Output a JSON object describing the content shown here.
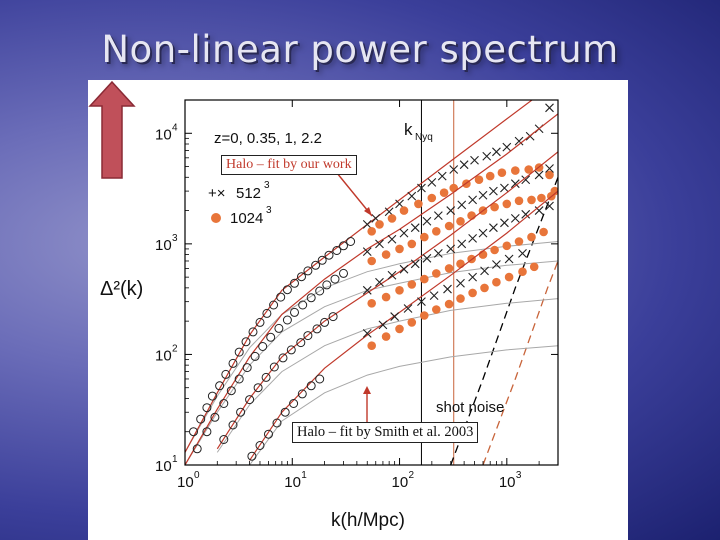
{
  "slide": {
    "title": "Non-linear power spectrum"
  },
  "chart_data": {
    "type": "scatter",
    "xlabel": "k(h/Mpc)",
    "ylabel": "Δ²(k)",
    "x_scale": "log",
    "y_scale": "log",
    "xlim": [
      1,
      3000
    ],
    "ylim": [
      10,
      20000
    ],
    "x_ticks": [
      {
        "value": 1,
        "label": "10",
        "exp": "0"
      },
      {
        "value": 10,
        "label": "10",
        "exp": "1"
      },
      {
        "value": 100,
        "label": "10",
        "exp": "2"
      },
      {
        "value": 1000,
        "label": "10",
        "exp": "3"
      }
    ],
    "y_ticks": [
      {
        "value": 10,
        "label": "10",
        "exp": "1"
      },
      {
        "value": 100,
        "label": "10",
        "exp": "2"
      },
      {
        "value": 1000,
        "label": "10",
        "exp": "3"
      },
      {
        "value": 10000,
        "label": "10",
        "exp": "4"
      }
    ],
    "redshift_label": "z=0, 0.35, 1, 2.2",
    "legend": [
      {
        "label": "512",
        "exp": "3",
        "marker": "+×"
      },
      {
        "label": "1024",
        "exp": "3",
        "marker": "●"
      }
    ],
    "annotations": {
      "k_nyq": "k",
      "k_nyq_sub": "Nyq",
      "shot_noise": "shot noise",
      "k_nyq_512": 160,
      "k_nyq_1024": 320
    },
    "callouts": {
      "top": "Halo – fit by our work",
      "bottom": "Halo – fit by Smith et al. 2003"
    },
    "series": [
      {
        "fit": [
          [
            1,
            13
          ],
          [
            2,
            45
          ],
          [
            4,
            150
          ],
          [
            8,
            380
          ],
          [
            20,
            760
          ],
          [
            50,
            1500
          ],
          [
            100,
            2500
          ],
          [
            300,
            5600
          ],
          [
            1000,
            13500
          ],
          [
            3000,
            30000
          ]
        ],
        "linear": [
          [
            1,
            13
          ],
          [
            2,
            42
          ],
          [
            4,
            115
          ],
          [
            8,
            230
          ],
          [
            20,
            400
          ],
          [
            50,
            560
          ],
          [
            100,
            660
          ],
          [
            300,
            820
          ],
          [
            1000,
            950
          ],
          [
            3000,
            1050
          ]
        ],
        "circles": [
          [
            1.2,
            20
          ],
          [
            1.4,
            26
          ],
          [
            1.6,
            33
          ],
          [
            1.8,
            42
          ],
          [
            2.1,
            52
          ],
          [
            2.4,
            66
          ],
          [
            2.8,
            83
          ],
          [
            3.2,
            105
          ],
          [
            3.7,
            130
          ],
          [
            4.3,
            160
          ],
          [
            5,
            195
          ],
          [
            5.8,
            235
          ],
          [
            6.7,
            280
          ],
          [
            7.8,
            330
          ],
          [
            9,
            385
          ],
          [
            10.5,
            440
          ],
          [
            12.2,
            505
          ],
          [
            14,
            570
          ],
          [
            16.5,
            640
          ],
          [
            19,
            710
          ],
          [
            22,
            790
          ],
          [
            26,
            870
          ],
          [
            30,
            960
          ],
          [
            35,
            1050
          ]
        ],
        "crosses": [
          [
            50,
            1500
          ],
          [
            60,
            1700
          ],
          [
            80,
            1950
          ],
          [
            100,
            2300
          ],
          [
            130,
            2700
          ],
          [
            160,
            3200
          ],
          [
            200,
            3600
          ],
          [
            250,
            4100
          ],
          [
            320,
            4700
          ],
          [
            400,
            5200
          ],
          [
            500,
            5700
          ],
          [
            650,
            6200
          ],
          [
            800,
            6800
          ],
          [
            1000,
            7500
          ],
          [
            1300,
            8500
          ],
          [
            1650,
            9400
          ],
          [
            2000,
            11000
          ],
          [
            2500,
            17000
          ]
        ],
        "dots": [
          [
            55,
            1300
          ],
          [
            65,
            1500
          ],
          [
            85,
            1700
          ],
          [
            110,
            2000
          ],
          [
            150,
            2300
          ],
          [
            200,
            2600
          ],
          [
            260,
            2900
          ],
          [
            320,
            3200
          ],
          [
            420,
            3500
          ],
          [
            550,
            3800
          ],
          [
            700,
            4100
          ],
          [
            900,
            4400
          ],
          [
            1200,
            4600
          ],
          [
            1600,
            4700
          ],
          [
            2000,
            4900
          ],
          [
            2500,
            4200
          ],
          [
            2800,
            3000
          ]
        ]
      },
      {
        "fit": [
          [
            1,
            10
          ],
          [
            2,
            32
          ],
          [
            4,
            95
          ],
          [
            8,
            230
          ],
          [
            20,
            480
          ],
          [
            50,
            900
          ],
          [
            100,
            1350
          ],
          [
            300,
            2800
          ],
          [
            1000,
            6500
          ],
          [
            3000,
            15000
          ]
        ],
        "linear": [
          [
            1,
            10
          ],
          [
            2,
            30
          ],
          [
            4,
            80
          ],
          [
            8,
            160
          ],
          [
            20,
            270
          ],
          [
            50,
            380
          ],
          [
            100,
            440
          ],
          [
            300,
            550
          ],
          [
            1000,
            640
          ],
          [
            3000,
            700
          ]
        ],
        "circles": [
          [
            1.3,
            14
          ],
          [
            1.6,
            20
          ],
          [
            1.9,
            27
          ],
          [
            2.3,
            36
          ],
          [
            2.7,
            47
          ],
          [
            3.2,
            60
          ],
          [
            3.8,
            76
          ],
          [
            4.5,
            96
          ],
          [
            5.3,
            118
          ],
          [
            6.3,
            143
          ],
          [
            7.5,
            172
          ],
          [
            9,
            205
          ],
          [
            10.5,
            240
          ],
          [
            12.5,
            280
          ],
          [
            15,
            325
          ],
          [
            18,
            375
          ],
          [
            21,
            425
          ],
          [
            25,
            480
          ],
          [
            30,
            540
          ]
        ],
        "crosses": [
          [
            50,
            850
          ],
          [
            65,
            1000
          ],
          [
            85,
            1100
          ],
          [
            110,
            1250
          ],
          [
            140,
            1400
          ],
          [
            180,
            1600
          ],
          [
            230,
            1800
          ],
          [
            300,
            2000
          ],
          [
            380,
            2250
          ],
          [
            480,
            2500
          ],
          [
            600,
            2750
          ],
          [
            750,
            3000
          ],
          [
            950,
            3200
          ],
          [
            1200,
            3500
          ],
          [
            1500,
            3800
          ],
          [
            2000,
            4200
          ],
          [
            2500,
            4800
          ]
        ],
        "dots": [
          [
            55,
            700
          ],
          [
            75,
            800
          ],
          [
            100,
            900
          ],
          [
            130,
            1000
          ],
          [
            170,
            1150
          ],
          [
            220,
            1300
          ],
          [
            290,
            1450
          ],
          [
            370,
            1600
          ],
          [
            470,
            1800
          ],
          [
            600,
            2000
          ],
          [
            770,
            2150
          ],
          [
            1000,
            2300
          ],
          [
            1300,
            2450
          ],
          [
            1700,
            2500
          ],
          [
            2100,
            2600
          ],
          [
            2600,
            2700
          ]
        ]
      },
      {
        "fit": [
          [
            2,
            14
          ],
          [
            4,
            40
          ],
          [
            8,
            95
          ],
          [
            20,
            200
          ],
          [
            50,
            360
          ],
          [
            100,
            560
          ],
          [
            300,
            1200
          ],
          [
            1000,
            2900
          ],
          [
            3000,
            6800
          ]
        ],
        "linear": [
          [
            2,
            13
          ],
          [
            4,
            35
          ],
          [
            8,
            70
          ],
          [
            20,
            120
          ],
          [
            50,
            170
          ],
          [
            100,
            200
          ],
          [
            300,
            250
          ],
          [
            1000,
            290
          ],
          [
            3000,
            320
          ]
        ],
        "circles": [
          [
            2.3,
            17
          ],
          [
            2.8,
            23
          ],
          [
            3.3,
            30
          ],
          [
            4,
            39
          ],
          [
            4.8,
            50
          ],
          [
            5.7,
            62
          ],
          [
            6.8,
            77
          ],
          [
            8.2,
            93
          ],
          [
            9.8,
            110
          ],
          [
            12,
            128
          ],
          [
            14,
            148
          ],
          [
            17,
            170
          ],
          [
            20,
            195
          ],
          [
            24,
            220
          ]
        ],
        "crosses": [
          [
            50,
            380
          ],
          [
            65,
            450
          ],
          [
            85,
            520
          ],
          [
            110,
            590
          ],
          [
            140,
            660
          ],
          [
            180,
            740
          ],
          [
            230,
            820
          ],
          [
            300,
            900
          ],
          [
            380,
            1000
          ],
          [
            480,
            1120
          ],
          [
            600,
            1250
          ],
          [
            750,
            1400
          ],
          [
            950,
            1550
          ],
          [
            1200,
            1700
          ],
          [
            1500,
            1850
          ],
          [
            2000,
            2000
          ],
          [
            2500,
            2200
          ]
        ],
        "dots": [
          [
            55,
            290
          ],
          [
            75,
            330
          ],
          [
            100,
            380
          ],
          [
            130,
            430
          ],
          [
            170,
            480
          ],
          [
            220,
            540
          ],
          [
            290,
            600
          ],
          [
            370,
            660
          ],
          [
            470,
            730
          ],
          [
            600,
            800
          ],
          [
            770,
            880
          ],
          [
            1000,
            960
          ],
          [
            1300,
            1050
          ],
          [
            1700,
            1150
          ],
          [
            2200,
            1280
          ]
        ]
      },
      {
        "fit": [
          [
            4,
            11
          ],
          [
            8,
            30
          ],
          [
            20,
            75
          ],
          [
            50,
            150
          ],
          [
            100,
            240
          ],
          [
            300,
            520
          ],
          [
            1000,
            1250
          ],
          [
            3000,
            3000
          ]
        ],
        "linear": [
          [
            4,
            10
          ],
          [
            8,
            25
          ],
          [
            20,
            45
          ],
          [
            50,
            65
          ],
          [
            100,
            78
          ],
          [
            300,
            95
          ],
          [
            1000,
            110
          ],
          [
            3000,
            120
          ]
        ],
        "circles": [
          [
            4.2,
            12
          ],
          [
            5,
            15
          ],
          [
            6,
            19
          ],
          [
            7.2,
            24
          ],
          [
            8.6,
            30
          ],
          [
            10.3,
            36
          ],
          [
            12.4,
            44
          ],
          [
            15,
            52
          ],
          [
            18,
            60
          ]
        ],
        "crosses": [
          [
            50,
            155
          ],
          [
            70,
            185
          ],
          [
            90,
            220
          ],
          [
            120,
            260
          ],
          [
            160,
            300
          ],
          [
            210,
            340
          ],
          [
            280,
            390
          ],
          [
            370,
            440
          ],
          [
            480,
            500
          ],
          [
            620,
            570
          ],
          [
            800,
            650
          ],
          [
            1050,
            730
          ],
          [
            1400,
            820
          ]
        ],
        "dots": [
          [
            55,
            120
          ],
          [
            75,
            145
          ],
          [
            100,
            170
          ],
          [
            130,
            195
          ],
          [
            170,
            225
          ],
          [
            220,
            255
          ],
          [
            290,
            285
          ],
          [
            370,
            320
          ],
          [
            480,
            360
          ],
          [
            620,
            400
          ],
          [
            800,
            450
          ],
          [
            1050,
            500
          ],
          [
            1400,
            560
          ],
          [
            1800,
            620
          ]
        ]
      }
    ],
    "shot_noise_512": [
      [
        300,
        10
      ],
      [
        600,
        60
      ],
      [
        1200,
        400
      ],
      [
        3000,
        4000
      ]
    ],
    "shot_noise_1024": [
      [
        600,
        10
      ],
      [
        1200,
        60
      ],
      [
        2400,
        400
      ],
      [
        3000,
        700
      ]
    ]
  }
}
